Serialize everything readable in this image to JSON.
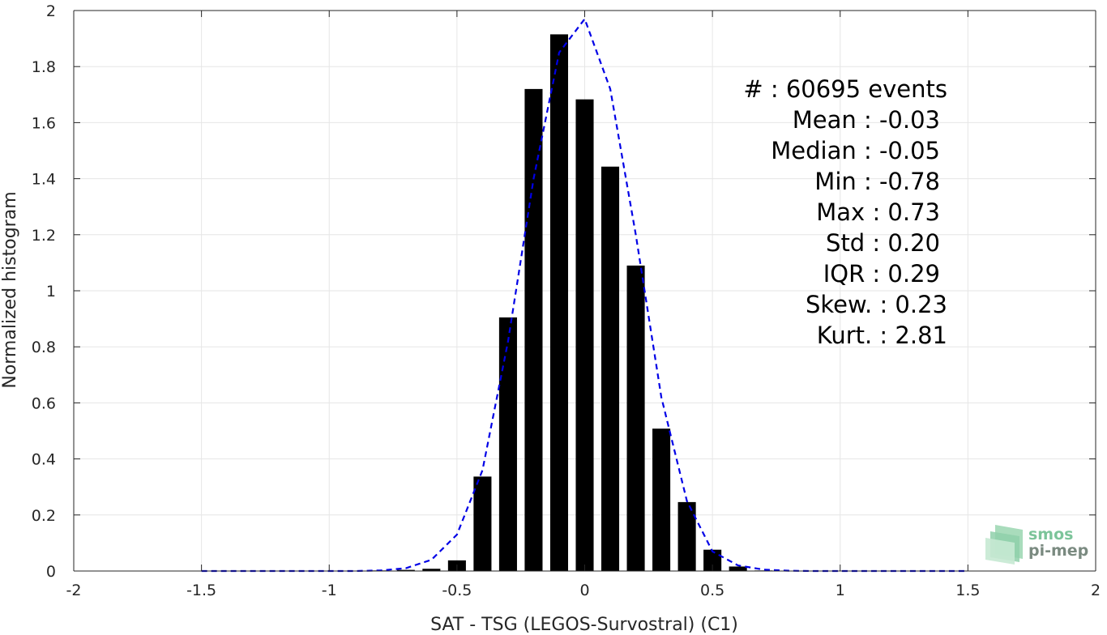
{
  "chart_data": {
    "type": "bar",
    "title": "",
    "xlabel": "SAT - TSG (LEGOS-Survostral) (C1)",
    "ylabel": "Normalized histogram",
    "xlim": [
      -2,
      2
    ],
    "ylim": [
      0,
      2
    ],
    "grid": true,
    "xticks": [
      -2,
      -1.5,
      -1,
      -0.5,
      0,
      0.5,
      1,
      1.5,
      2
    ],
    "xtick_labels": [
      "-2",
      "-1.5",
      "-1",
      "-0.5",
      "0",
      "0.5",
      "1",
      "1.5",
      "2"
    ],
    "yticks": [
      0,
      0.2,
      0.4,
      0.6,
      0.8,
      1,
      1.2,
      1.4,
      1.6,
      1.8,
      2
    ],
    "ytick_labels": [
      "0",
      "0.2",
      "0.4",
      "0.6",
      "0.8",
      "1",
      "1.2",
      "1.4",
      "1.6",
      "1.8",
      "2"
    ],
    "bar_width": 0.07,
    "series": [
      {
        "type": "bar",
        "color": "#000000",
        "x": [
          -0.8,
          -0.7,
          -0.6,
          -0.5,
          -0.4,
          -0.3,
          -0.2,
          -0.1,
          0,
          0.1,
          0.2,
          0.3,
          0.4,
          0.5,
          0.6,
          0.7
        ],
        "values": [
          0.002,
          0.004,
          0.008,
          0.038,
          0.337,
          0.905,
          1.72,
          1.915,
          1.683,
          1.443,
          1.09,
          0.508,
          0.246,
          0.076,
          0.016,
          0.002
        ]
      },
      {
        "type": "line",
        "style": "dashed",
        "color": "#0000e6",
        "x": [
          -1.5,
          -1.4,
          -1.3,
          -1.2,
          -1.1,
          -1.0,
          -0.9,
          -0.8,
          -0.7,
          -0.6,
          -0.5,
          -0.4,
          -0.3,
          -0.2,
          -0.1,
          0,
          0.1,
          0.2,
          0.3,
          0.4,
          0.5,
          0.6,
          0.7,
          0.8,
          0.9,
          1.0,
          1.1,
          1.2,
          1.3,
          1.4,
          1.5
        ],
        "values": [
          0,
          0,
          0,
          0,
          0,
          0,
          0,
          0.002,
          0.01,
          0.04,
          0.13,
          0.36,
          0.82,
          1.4,
          1.85,
          1.97,
          1.72,
          1.2,
          0.62,
          0.25,
          0.07,
          0.02,
          0.005,
          0.001,
          0,
          0,
          0,
          0,
          0,
          0,
          0
        ]
      }
    ],
    "annotations": [
      "#  : 60695 events",
      "Mean : -0.03",
      "Median : -0.05",
      "Min : -0.78",
      "Max : 0.73",
      "Std : 0.20",
      "IQR : 0.29",
      "Skew. : 0.23",
      "Kurt. : 2.81"
    ]
  },
  "logo": {
    "line1": "smos",
    "line2": "pi-mep"
  },
  "colors": {
    "bars": "#000000",
    "fit_line": "#0000e6",
    "grid": "#e6e6e6",
    "axis": "#262626",
    "logo": "#7cc49a"
  }
}
